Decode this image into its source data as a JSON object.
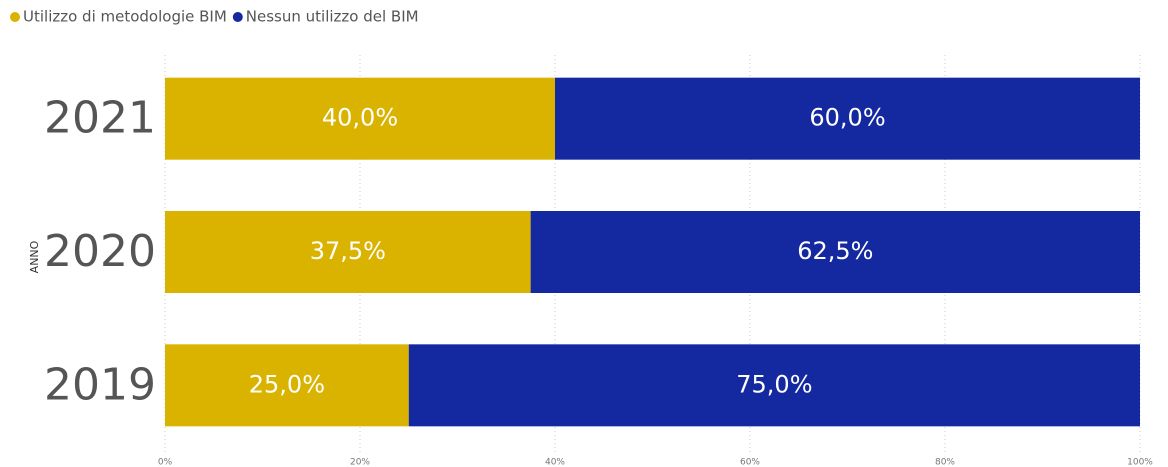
{
  "chart_data": {
    "type": "stacked_bar_horizontal",
    "y_axis_label": "ANNO",
    "categories": [
      "2021",
      "2020",
      "2019"
    ],
    "series": [
      {
        "name": "Utilizzo di metodologie BIM",
        "color": "#d9b300",
        "values": [
          40,
          37.5,
          25
        ],
        "value_labels": [
          "40,0%",
          "37,5%",
          "25,0%"
        ]
      },
      {
        "name": "Nessun utilizzo del BIM",
        "color": "#1428a0",
        "values": [
          60,
          62.5,
          75
        ],
        "value_labels": [
          "60,0%",
          "62,5%",
          "75,0%"
        ]
      }
    ],
    "xlim": [
      0,
      100
    ],
    "xticks": [
      {
        "value": 0,
        "label": "0%"
      },
      {
        "value": 20,
        "label": "20%"
      },
      {
        "value": 40,
        "label": "40%"
      },
      {
        "value": 60,
        "label": "60%"
      },
      {
        "value": 80,
        "label": "80%"
      },
      {
        "value": 100,
        "label": "100%"
      }
    ],
    "grid": true,
    "legend": "top-left"
  }
}
